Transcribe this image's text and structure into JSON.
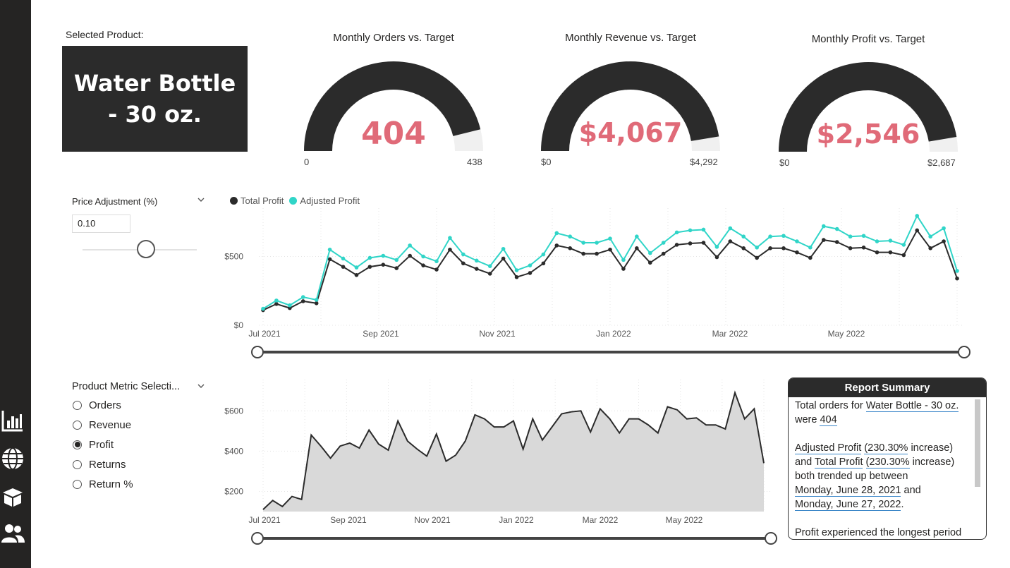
{
  "sidebar": {
    "icons": [
      "bar-chart-icon",
      "globe-icon",
      "box-icon",
      "users-icon"
    ]
  },
  "product": {
    "label": "Selected Product:",
    "name": "Water Bottle - 30 oz."
  },
  "gauges": [
    {
      "title": "Monthly Orders vs. Target",
      "value": "404",
      "min": "0",
      "max": "438",
      "fraction": 0.922
    },
    {
      "title": "Monthly Revenue vs. Target",
      "value": "$4,067",
      "min": "$0",
      "max": "$4,292",
      "fraction": 0.948
    },
    {
      "title": "Monthly Profit vs. Target",
      "value": "$2,546",
      "min": "$0",
      "max": "$2,687",
      "fraction": 0.947
    }
  ],
  "price_adjustment": {
    "label": "Price Adjustment (%)",
    "value": "0.10"
  },
  "metric_selection": {
    "label": "Product Metric Selecti...",
    "options": [
      {
        "label": "Orders",
        "selected": false
      },
      {
        "label": "Revenue",
        "selected": false
      },
      {
        "label": "Profit",
        "selected": true
      },
      {
        "label": "Returns",
        "selected": false
      },
      {
        "label": "Return %",
        "selected": false
      }
    ]
  },
  "summary": {
    "title": "Report Summary",
    "p1_a": "Total orders for ",
    "p1_product": "Water Bottle - 30 oz.",
    "p1_b": " were ",
    "p1_value": "404",
    "p2_s1": "Adjusted Profit",
    "p2_pct1": "(230.30%",
    "p2_b": " increase) and",
    "p2_s2": "Total Profit",
    "p2_pct2": "(230.30%",
    "p2_c": " increase) both trended up between",
    "p2_d1": "Monday, June 28, 2021",
    "p2_and": " and",
    "p2_d2": "Monday, June 27, 2022",
    "p2_end": ".",
    "p3": "Profit experienced the longest period"
  },
  "chart_data": [
    {
      "type": "line",
      "legend_placement": "top-left",
      "series": [
        {
          "name": "Total Profit",
          "color": "#2b2b2b",
          "values": [
            110,
            155,
            125,
            175,
            160,
            480,
            425,
            365,
            425,
            440,
            415,
            505,
            435,
            405,
            550,
            450,
            410,
            375,
            485,
            350,
            380,
            450,
            580,
            560,
            520,
            520,
            550,
            410,
            560,
            455,
            520,
            585,
            595,
            600,
            495,
            610,
            560,
            490,
            560,
            560,
            530,
            490,
            620,
            605,
            560,
            565,
            530,
            530,
            510,
            690,
            560,
            610,
            340
          ]
        },
        {
          "name": "Adjusted Profit",
          "color": "#30d5c8",
          "values": [
            120,
            180,
            145,
            205,
            185,
            550,
            485,
            420,
            490,
            505,
            475,
            580,
            500,
            465,
            635,
            515,
            470,
            430,
            555,
            400,
            435,
            515,
            670,
            645,
            600,
            600,
            630,
            475,
            645,
            525,
            600,
            675,
            690,
            695,
            570,
            705,
            645,
            565,
            645,
            650,
            610,
            565,
            720,
            700,
            645,
            650,
            610,
            615,
            585,
            795,
            645,
            705,
            395
          ]
        }
      ],
      "x_ticks": [
        "Jul 2021",
        "Sep 2021",
        "Nov 2021",
        "Jan 2022",
        "Mar 2022",
        "May 2022"
      ],
      "y_ticks": [
        "$0",
        "$500"
      ],
      "ylim": [
        0,
        800
      ],
      "grid": true
    },
    {
      "type": "area",
      "series": [
        {
          "name": "Profit",
          "color": "#2b2b2b",
          "fill": "#d9d9d9",
          "values": [
            110,
            155,
            125,
            175,
            160,
            480,
            425,
            365,
            425,
            440,
            415,
            505,
            435,
            405,
            550,
            450,
            410,
            375,
            485,
            350,
            380,
            450,
            580,
            560,
            520,
            520,
            550,
            410,
            560,
            455,
            520,
            585,
            595,
            600,
            495,
            610,
            560,
            490,
            560,
            560,
            530,
            490,
            620,
            605,
            560,
            565,
            530,
            530,
            510,
            690,
            560,
            610,
            340
          ]
        }
      ],
      "x_ticks": [
        "Jul 2021",
        "Sep 2021",
        "Nov 2021",
        "Jan 2022",
        "Mar 2022",
        "May 2022"
      ],
      "y_ticks": [
        "$200",
        "$400",
        "$600"
      ],
      "ylim": [
        100,
        720
      ],
      "grid": true
    }
  ]
}
